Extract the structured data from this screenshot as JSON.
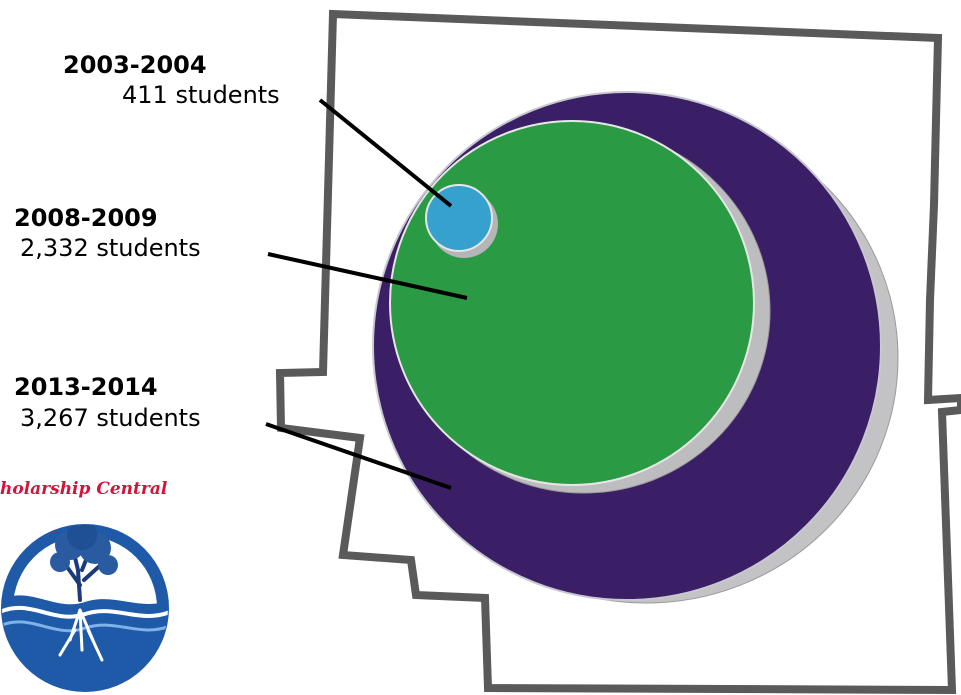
{
  "chart_data": {
    "type": "bubble",
    "unit_label": "students",
    "items": [
      {
        "year": "2003-2004",
        "count_text": "411 students",
        "value": 411,
        "color": "#35a1cc"
      },
      {
        "year": "2008-2009",
        "count_text": "2,332 students",
        "value": 2332,
        "color": "#2a9a44"
      },
      {
        "year": "2013-2014",
        "count_text": "3,267 students",
        "value": 3267,
        "color": "#3b1f66"
      }
    ]
  },
  "logo": {
    "text": "Scholarship Central",
    "visible_text": "holarship Central",
    "icon": "tree-roots-icon"
  },
  "background": {
    "shape": "map-outline",
    "outline_color": "#5a5a5a"
  }
}
